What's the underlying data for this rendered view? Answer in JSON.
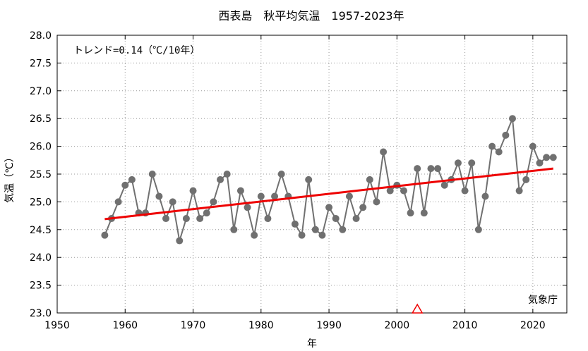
{
  "chart_data": {
    "type": "line",
    "title": "西表島　秋平均気温　1957-2023年",
    "xlabel": "年",
    "ylabel": "気温（℃）",
    "trend_label": "トレンド=0.14（℃/10年）",
    "credit": "気象庁",
    "xlim": [
      1950,
      2025
    ],
    "ylim": [
      23.0,
      28.0
    ],
    "x_ticks": [
      1950,
      1960,
      1970,
      1980,
      1990,
      2000,
      2010,
      2020
    ],
    "y_ticks": [
      "23.0",
      "23.5",
      "24.0",
      "24.5",
      "25.0",
      "25.5",
      "26.0",
      "26.5",
      "27.0",
      "27.5",
      "28.0"
    ],
    "grid": true,
    "series": [
      {
        "x": [
          1957,
          1958,
          1959,
          1960,
          1961,
          1962,
          1963,
          1964,
          1965,
          1966,
          1967,
          1968,
          1969,
          1970,
          1971,
          1972,
          1973,
          1974,
          1975,
          1976,
          1977,
          1978,
          1979,
          1980,
          1981,
          1982,
          1983,
          1984,
          1985,
          1986,
          1987,
          1988,
          1989,
          1990,
          1991,
          1992,
          1993,
          1994,
          1995,
          1996,
          1997,
          1998,
          1999,
          2000,
          2001,
          2002,
          2003,
          2004,
          2005,
          2006,
          2007,
          2008,
          2009,
          2010,
          2011,
          2012,
          2013,
          2014,
          2015,
          2016,
          2017,
          2018,
          2019,
          2020,
          2021,
          2022,
          2023
        ],
        "values": [
          24.4,
          24.7,
          25.0,
          25.3,
          25.4,
          24.8,
          24.8,
          25.5,
          25.1,
          24.7,
          25.0,
          24.3,
          24.7,
          25.2,
          24.7,
          24.8,
          25.0,
          25.4,
          25.5,
          24.5,
          25.2,
          24.9,
          24.4,
          25.1,
          24.7,
          25.1,
          25.5,
          25.1,
          24.6,
          24.4,
          25.4,
          24.5,
          24.4,
          24.9,
          24.7,
          24.5,
          25.1,
          24.7,
          24.9,
          25.4,
          25.0,
          25.9,
          25.2,
          25.3,
          25.2,
          24.8,
          25.6,
          24.8,
          25.6,
          25.6,
          25.3,
          25.4,
          25.7,
          25.2,
          25.7,
          24.5,
          25.1,
          26.0,
          25.9,
          26.2,
          26.5,
          25.2,
          25.4,
          26.0,
          25.7,
          25.8,
          25.8
        ],
        "color": "#707070"
      }
    ],
    "trend_line": {
      "x": [
        1957,
        2023
      ],
      "values": [
        24.69,
        25.6
      ],
      "color": "#ee0000"
    },
    "marker": {
      "x": 2003,
      "value": 23.0,
      "symbol": "triangle",
      "color": "#ee0000"
    }
  }
}
